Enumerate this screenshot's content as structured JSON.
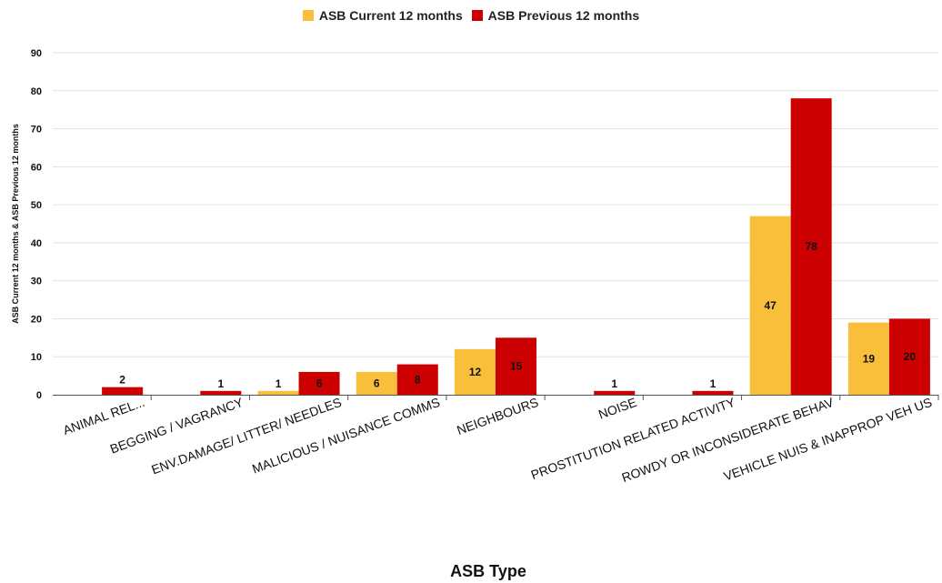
{
  "chart_data": {
    "type": "bar",
    "title": "",
    "xlabel": "ASB Type",
    "ylabel": "ASB Current 12 months & ASB Previous 12 months",
    "ylim": [
      0,
      90
    ],
    "yticks": [
      0,
      10,
      20,
      30,
      40,
      50,
      60,
      70,
      80,
      90
    ],
    "grid": true,
    "legend_position": "top-center",
    "categories": [
      "ANIMAL REL...",
      "BEGGING / VAGRANCY",
      "ENV.DAMAGE/ LITTER/ NEEDLES",
      "MALICIOUS / NUISANCE COMMS",
      "NEIGHBOURS",
      "NOISE",
      "PROSTITUTION RELATED ACTIVITY",
      "ROWDY OR INCONSIDERATE BEHAV",
      "VEHICLE NUIS & INAPPROP VEH US"
    ],
    "series": [
      {
        "name": "ASB Current 12 months",
        "color": "#f9bf3b",
        "values": [
          0,
          0,
          1,
          6,
          12,
          0,
          0,
          47,
          19
        ]
      },
      {
        "name": "ASB Previous 12 months",
        "color": "#cc0000",
        "values": [
          2,
          1,
          6,
          8,
          15,
          1,
          1,
          78,
          20
        ]
      }
    ]
  }
}
